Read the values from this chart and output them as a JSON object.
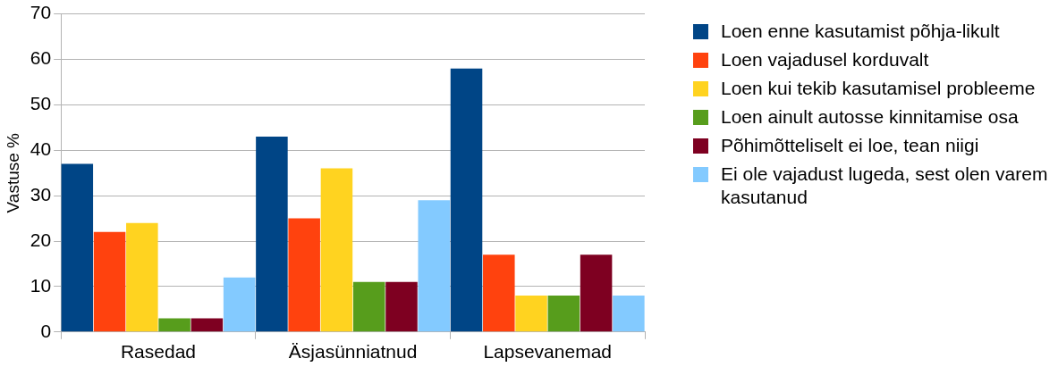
{
  "chart_data": {
    "type": "bar",
    "ylabel": "Vastuse %",
    "categories": [
      "Rasedad",
      "Äsjasünniatnud",
      "Lapsevanemad"
    ],
    "series": [
      {
        "name": "Loen enne kasutamist põhja-likult",
        "color": "#004586",
        "values": [
          37,
          43,
          58
        ]
      },
      {
        "name": "Loen vajadusel korduvalt",
        "color": "#ff420e",
        "values": [
          22,
          25,
          17
        ]
      },
      {
        "name": "Loen kui tekib kasutamisel probleeme",
        "color": "#ffd320",
        "values": [
          24,
          36,
          8
        ]
      },
      {
        "name": "Loen ainult autosse kinnitamise osa",
        "color": "#579d1c",
        "values": [
          3,
          11,
          8
        ]
      },
      {
        "name": "Põhimõtteliselt ei loe, tean niigi",
        "color": "#7e0021",
        "values": [
          3,
          11,
          17
        ]
      },
      {
        "name": "Ei ole vajadust lugeda, sest olen varem kasutanud",
        "color": "#83caff",
        "values": [
          12,
          29,
          8
        ]
      }
    ],
    "ylim": [
      0,
      70
    ],
    "yticks": [
      0,
      10,
      20,
      30,
      40,
      50,
      60,
      70
    ],
    "grid": "y",
    "legend": "right"
  }
}
